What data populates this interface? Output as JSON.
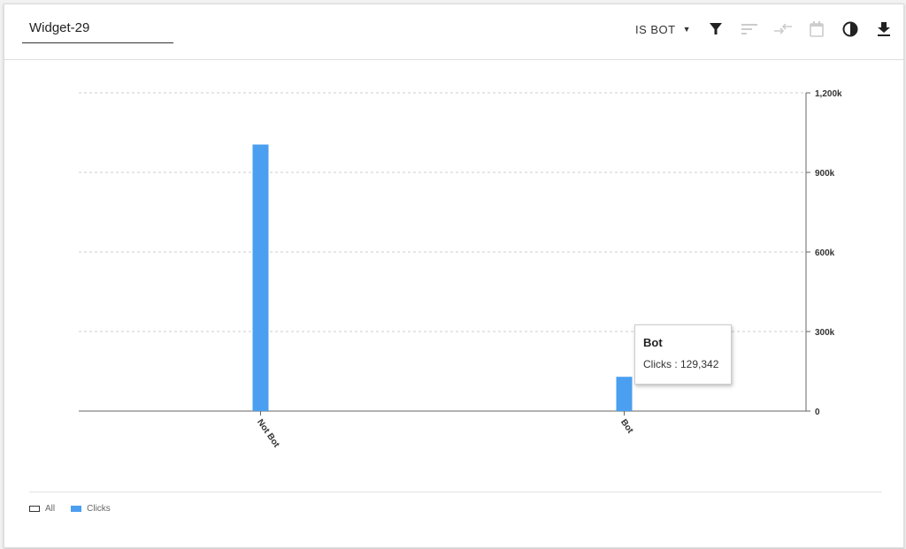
{
  "widget": {
    "title": "Widget-29"
  },
  "toolbar": {
    "dimension_label": "IS BOT",
    "icons": [
      "filter-icon",
      "sort-icon",
      "compare-icon",
      "calendar-icon",
      "contrast-icon",
      "download-icon"
    ]
  },
  "chart_data": {
    "type": "bar",
    "categories": [
      "Not Bot",
      "Bot"
    ],
    "series": [
      {
        "name": "Clicks",
        "values": [
          1005000,
          129342
        ],
        "color": "#4a9ff0"
      }
    ],
    "ylim": [
      0,
      1200000
    ],
    "yticks": [
      0,
      300000,
      600000,
      900000,
      1200000
    ],
    "ytick_labels": [
      "0",
      "300k",
      "600k",
      "900k",
      "1,200k"
    ],
    "y_axis_position": "right",
    "grid": true
  },
  "legend": {
    "items": [
      {
        "label": "All"
      },
      {
        "label": "Clicks",
        "color": "#4a9ff0"
      }
    ]
  },
  "tooltip": {
    "title": "Bot",
    "text": "Clicks : 129,342"
  }
}
